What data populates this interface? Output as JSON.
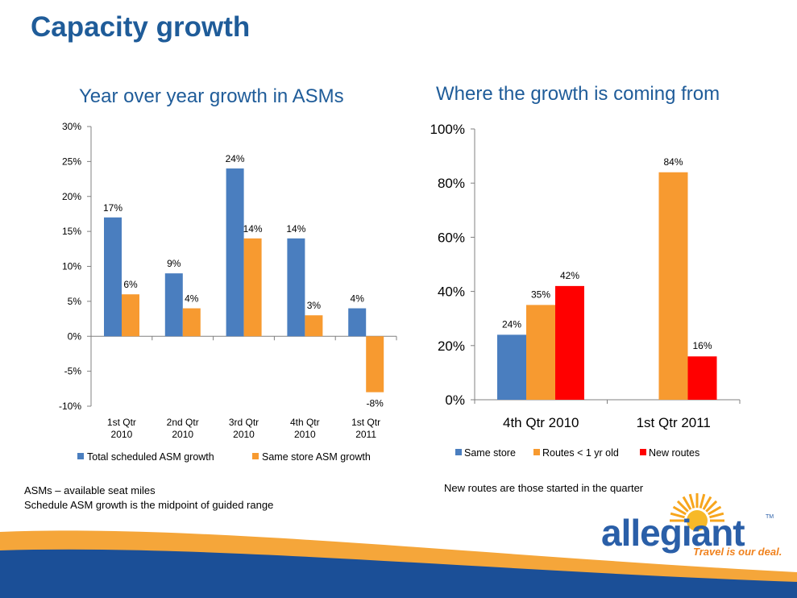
{
  "page": {
    "title": "Capacity growth"
  },
  "notes": {
    "left_line1": "ASMs – available seat miles",
    "left_line2": "Schedule ASM growth is the midpoint of guided range",
    "right": "New routes are those started in the  quarter"
  },
  "logo": {
    "brand": "allegiant",
    "tagline": "Travel is our deal.",
    "tm": "TM"
  },
  "colors": {
    "title_blue": "#1f5c99",
    "series_blue": "#4a7ebf",
    "series_orange": "#f79a30",
    "series_red": "#ff0000",
    "swoosh_blue": "#1b4f97",
    "swoosh_orange": "#f5a63a"
  },
  "chart_data": [
    {
      "type": "bar",
      "title": "Year over year growth in ASMs",
      "categories": [
        "1st Qtr 2010",
        "2nd Qtr 2010",
        "3rd Qtr 2010",
        "4th Qtr 2010",
        "1st Qtr 2011"
      ],
      "category_lines": [
        [
          "1st Qtr",
          "2010"
        ],
        [
          "2nd Qtr",
          "2010"
        ],
        [
          "3rd Qtr",
          "2010"
        ],
        [
          "4th Qtr",
          "2010"
        ],
        [
          "1st Qtr",
          "2011"
        ]
      ],
      "series": [
        {
          "name": "Total scheduled ASM growth",
          "values": [
            17,
            9,
            24,
            14,
            4
          ],
          "labels": [
            "17%",
            "9%",
            "24%",
            "14%",
            "4%"
          ],
          "color": "#4a7ebf"
        },
        {
          "name": "Same store ASM growth",
          "values": [
            6,
            4,
            14,
            3,
            -8
          ],
          "labels": [
            "6%",
            "4%",
            "14%",
            "3%",
            "-8%"
          ],
          "color": "#f79a30"
        }
      ],
      "ylim": [
        -10,
        30
      ],
      "yticks": [
        30,
        25,
        20,
        15,
        10,
        5,
        0,
        -5,
        -10
      ],
      "ytick_labels": [
        "30%",
        "25%",
        "20%",
        "15%",
        "10%",
        "5%",
        "0%",
        "-5%",
        "-10%"
      ],
      "legend_position": "bottom",
      "grid": false
    },
    {
      "type": "bar",
      "title": "Where the growth is coming from",
      "categories": [
        "4th Qtr 2010",
        "1st Qtr 2011"
      ],
      "series": [
        {
          "name": "Same store",
          "values": [
            24,
            null
          ],
          "labels": [
            "24%",
            ""
          ],
          "color": "#4a7ebf"
        },
        {
          "name": "Routes < 1 yr old",
          "values": [
            35,
            84
          ],
          "labels": [
            "35%",
            "84%"
          ],
          "color": "#f79a30"
        },
        {
          "name": "New routes",
          "values": [
            42,
            16
          ],
          "labels": [
            "42%",
            "16%"
          ],
          "color": "#ff0000"
        }
      ],
      "ylim": [
        0,
        100
      ],
      "yticks": [
        100,
        80,
        60,
        40,
        20,
        0
      ],
      "ytick_labels": [
        "100%",
        "80%",
        "60%",
        "40%",
        "20%",
        "0%"
      ],
      "legend_position": "bottom",
      "grid": false
    }
  ]
}
